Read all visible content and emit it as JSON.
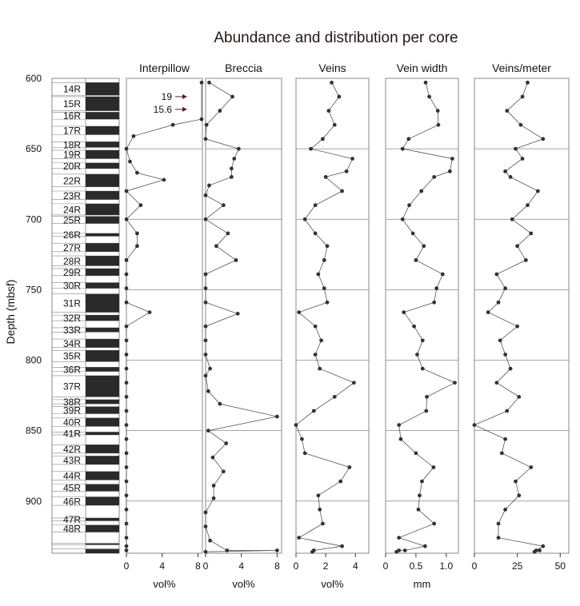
{
  "title": "Abundance and distribution per core",
  "y_axis_label": "Depth (mbsf)",
  "colors": {
    "line": "#555555",
    "point": "#333333",
    "frame": "#888888",
    "core_fill": "#2a2a2a",
    "arrow": "#5a1e1e"
  },
  "cores": [
    {
      "label": "14R",
      "top": 603,
      "bottom": 612
    },
    {
      "label": "15R",
      "top": 613,
      "bottom": 623
    },
    {
      "label": "16R",
      "top": 624,
      "bottom": 629
    },
    {
      "label": "17R",
      "top": 634,
      "bottom": 640
    },
    {
      "label": "18R",
      "top": 645,
      "bottom": 649
    },
    {
      "label": "19R",
      "top": 651,
      "bottom": 657
    },
    {
      "label": "20R",
      "top": 660,
      "bottom": 664
    },
    {
      "label": "22R",
      "top": 668,
      "bottom": 677
    },
    {
      "label": "23R",
      "top": 680,
      "bottom": 686
    },
    {
      "label": "24R",
      "top": 689,
      "bottom": 697
    },
    {
      "label": "25R",
      "top": 698,
      "bottom": 703
    },
    {
      "label": "26R",
      "top": 710,
      "bottom": 712
    },
    {
      "label": "27R",
      "top": 717,
      "bottom": 723
    },
    {
      "label": "28R",
      "top": 726,
      "bottom": 733
    },
    {
      "label": "29R",
      "top": 735,
      "bottom": 740
    },
    {
      "label": "30R",
      "top": 745,
      "bottom": 749
    },
    {
      "label": "31R",
      "top": 753,
      "bottom": 766
    },
    {
      "label": "32R",
      "top": 768,
      "bottom": 772
    },
    {
      "label": "33R",
      "top": 777,
      "bottom": 780
    },
    {
      "label": "34R",
      "top": 785,
      "bottom": 791
    },
    {
      "label": "35R",
      "top": 793,
      "bottom": 801
    },
    {
      "label": "36R",
      "top": 805,
      "bottom": 808
    },
    {
      "label": "37R",
      "top": 811,
      "bottom": 826
    },
    {
      "label": "38R",
      "top": 828,
      "bottom": 831
    },
    {
      "label": "39R",
      "top": 833,
      "bottom": 838
    },
    {
      "label": "40R",
      "top": 841,
      "bottom": 847
    },
    {
      "label": "41R",
      "top": 851,
      "bottom": 853
    },
    {
      "label": "42R",
      "top": 860,
      "bottom": 866
    },
    {
      "label": "43R",
      "top": 868,
      "bottom": 874
    },
    {
      "label": "44R",
      "top": 879,
      "bottom": 885
    },
    {
      "label": "45R",
      "top": 888,
      "bottom": 893
    },
    {
      "label": "46R",
      "top": 897,
      "bottom": 903
    },
    {
      "label": "47R",
      "top": 912,
      "bottom": 914
    },
    {
      "label": "48R",
      "top": 917,
      "bottom": 922
    },
    {
      "label": "",
      "top": 930,
      "bottom": 931
    },
    {
      "label": "",
      "top": 934,
      "bottom": 937
    }
  ],
  "chart_data": {
    "type": "line",
    "y_axis": {
      "label": "Depth (mbsf)",
      "range": [
        600,
        937
      ],
      "reversed": true,
      "ticks": [
        600,
        650,
        700,
        750,
        800,
        850,
        900
      ]
    },
    "depth_gridlines": [
      650,
      700,
      750,
      800,
      850,
      900
    ],
    "panels": [
      {
        "name": "Interpillow",
        "unit": "vol%",
        "xlim": [
          0,
          8.5
        ],
        "ticks": [
          {
            "v": 0,
            "t": "0"
          },
          {
            "v": 4,
            "t": "4"
          },
          {
            "v": 8,
            "t": "8"
          }
        ],
        "annotations": [
          {
            "text": "19",
            "depth": 613
          },
          {
            "text": "15.6",
            "depth": 622
          }
        ],
        "points": [
          [
            8.5,
            603
          ],
          [
            8.5,
            629
          ],
          [
            5.2,
            633
          ],
          [
            0.8,
            641
          ],
          [
            0,
            650
          ],
          [
            0.4,
            659
          ],
          [
            1.2,
            667
          ],
          [
            4.2,
            672
          ],
          [
            0,
            680
          ],
          [
            1.6,
            690
          ],
          [
            0,
            700
          ],
          [
            1.2,
            710
          ],
          [
            1.2,
            719
          ],
          [
            0,
            729
          ],
          [
            0,
            739
          ],
          [
            0,
            749
          ],
          [
            0,
            759
          ],
          [
            2.6,
            766
          ],
          [
            0,
            776
          ],
          [
            0,
            786
          ],
          [
            0,
            796
          ],
          [
            0,
            806
          ],
          [
            0,
            816
          ],
          [
            0,
            826
          ],
          [
            0,
            836
          ],
          [
            0,
            846
          ],
          [
            0,
            856
          ],
          [
            0,
            866
          ],
          [
            0,
            876
          ],
          [
            0,
            886
          ],
          [
            0,
            896
          ],
          [
            0,
            906
          ],
          [
            0,
            916
          ],
          [
            0,
            926
          ],
          [
            0,
            932
          ],
          [
            0,
            935
          ]
        ]
      },
      {
        "name": "Breccia",
        "unit": "vol%",
        "xlim": [
          0,
          8.5
        ],
        "ticks": [
          {
            "v": 0,
            "t": "0"
          },
          {
            "v": 4,
            "t": "4"
          },
          {
            "v": 8,
            "t": "8"
          }
        ],
        "points": [
          [
            0.4,
            603
          ],
          [
            3,
            613
          ],
          [
            1.6,
            623
          ],
          [
            0.1,
            633
          ],
          [
            0,
            643
          ],
          [
            3.7,
            650
          ],
          [
            3.2,
            657
          ],
          [
            2.9,
            664
          ],
          [
            2.9,
            670
          ],
          [
            0.4,
            676
          ],
          [
            0,
            683
          ],
          [
            2,
            690
          ],
          [
            0,
            700
          ],
          [
            2.5,
            710
          ],
          [
            1.2,
            719
          ],
          [
            3.4,
            729
          ],
          [
            0,
            739
          ],
          [
            0,
            749
          ],
          [
            0,
            759
          ],
          [
            3.6,
            767
          ],
          [
            0,
            776
          ],
          [
            0,
            786
          ],
          [
            0,
            796
          ],
          [
            0.5,
            806
          ],
          [
            0,
            811
          ],
          [
            0.3,
            822
          ],
          [
            1.6,
            831
          ],
          [
            8,
            840
          ],
          [
            0.3,
            850
          ],
          [
            2.3,
            859
          ],
          [
            0.8,
            869
          ],
          [
            2,
            879
          ],
          [
            0.9,
            889
          ],
          [
            0.9,
            898
          ],
          [
            0,
            908
          ],
          [
            0,
            918
          ],
          [
            0.5,
            928
          ],
          [
            2.4,
            935
          ],
          [
            8,
            935
          ],
          [
            0,
            936
          ]
        ]
      },
      {
        "name": "Veins",
        "unit": "vol%",
        "xlim": [
          0,
          4.9
        ],
        "ticks": [
          {
            "v": 0,
            "t": "0"
          },
          {
            "v": 2,
            "t": "2"
          },
          {
            "v": 4,
            "t": "4"
          }
        ],
        "points": [
          [
            2.4,
            603
          ],
          [
            2.9,
            613
          ],
          [
            2.2,
            623
          ],
          [
            2.6,
            633
          ],
          [
            1.8,
            643
          ],
          [
            1,
            650
          ],
          [
            3.8,
            657
          ],
          [
            3.4,
            666
          ],
          [
            2,
            670
          ],
          [
            3.1,
            680
          ],
          [
            1.3,
            690
          ],
          [
            0.6,
            700
          ],
          [
            1.3,
            710
          ],
          [
            2.1,
            719
          ],
          [
            1.9,
            729
          ],
          [
            1.5,
            739
          ],
          [
            1.9,
            749
          ],
          [
            2.1,
            759
          ],
          [
            0.2,
            766
          ],
          [
            1.3,
            776
          ],
          [
            1.7,
            786
          ],
          [
            1.3,
            796
          ],
          [
            1.6,
            806
          ],
          [
            3.9,
            816
          ],
          [
            2.6,
            826
          ],
          [
            1.2,
            836
          ],
          [
            0,
            846
          ],
          [
            0.4,
            856
          ],
          [
            0.6,
            866
          ],
          [
            3.6,
            876
          ],
          [
            3,
            886
          ],
          [
            1.5,
            896
          ],
          [
            1.6,
            906
          ],
          [
            1.8,
            916
          ],
          [
            0.2,
            926
          ],
          [
            3.1,
            932
          ],
          [
            1.2,
            935
          ],
          [
            1.1,
            936
          ]
        ]
      },
      {
        "name": "Vein width",
        "unit": "mm",
        "xlim": [
          0,
          1.2
        ],
        "ticks": [
          {
            "v": 0,
            "t": "0"
          },
          {
            "v": 0.5,
            "t": "0.5"
          },
          {
            "v": 1,
            "t": "1.0"
          }
        ],
        "points": [
          [
            0.66,
            603
          ],
          [
            0.72,
            613
          ],
          [
            0.86,
            623
          ],
          [
            0.87,
            633
          ],
          [
            0.38,
            643
          ],
          [
            0.28,
            650
          ],
          [
            1.1,
            657
          ],
          [
            1.06,
            666
          ],
          [
            0.8,
            670
          ],
          [
            0.59,
            680
          ],
          [
            0.39,
            690
          ],
          [
            0.28,
            700
          ],
          [
            0.45,
            710
          ],
          [
            0.63,
            719
          ],
          [
            0.5,
            729
          ],
          [
            0.94,
            739
          ],
          [
            0.84,
            749
          ],
          [
            0.8,
            759
          ],
          [
            0.3,
            766
          ],
          [
            0.47,
            776
          ],
          [
            0.61,
            786
          ],
          [
            0.52,
            796
          ],
          [
            0.61,
            806
          ],
          [
            1.14,
            816
          ],
          [
            0.68,
            826
          ],
          [
            0.67,
            836
          ],
          [
            0.22,
            846
          ],
          [
            0.25,
            856
          ],
          [
            0.5,
            866
          ],
          [
            0.79,
            876
          ],
          [
            0.6,
            886
          ],
          [
            0.56,
            896
          ],
          [
            0.54,
            906
          ],
          [
            0.8,
            916
          ],
          [
            0.22,
            926
          ],
          [
            0.65,
            932
          ],
          [
            0.32,
            935
          ],
          [
            0.22,
            935
          ],
          [
            0.18,
            936
          ]
        ]
      },
      {
        "name": "Veins/meter",
        "unit": "",
        "xlim": [
          0,
          55
        ],
        "ticks": [
          {
            "v": 0,
            "t": "0"
          },
          {
            "v": 25,
            "t": "25"
          },
          {
            "v": 50,
            "t": "50"
          }
        ],
        "points": [
          [
            31,
            603
          ],
          [
            28,
            613
          ],
          [
            19,
            623
          ],
          [
            27,
            633
          ],
          [
            40,
            643
          ],
          [
            24,
            650
          ],
          [
            28,
            657
          ],
          [
            18,
            666
          ],
          [
            21,
            670
          ],
          [
            37,
            680
          ],
          [
            31,
            690
          ],
          [
            22,
            700
          ],
          [
            33,
            710
          ],
          [
            25,
            719
          ],
          [
            30,
            729
          ],
          [
            13,
            739
          ],
          [
            18,
            749
          ],
          [
            14,
            759
          ],
          [
            8,
            766
          ],
          [
            25,
            776
          ],
          [
            15,
            786
          ],
          [
            18,
            796
          ],
          [
            21,
            806
          ],
          [
            13,
            816
          ],
          [
            26,
            826
          ],
          [
            19,
            836
          ],
          [
            0,
            846
          ],
          [
            18,
            856
          ],
          [
            16,
            866
          ],
          [
            33,
            876
          ],
          [
            24,
            886
          ],
          [
            26,
            896
          ],
          [
            18,
            906
          ],
          [
            14,
            916
          ],
          [
            14,
            926
          ],
          [
            40,
            932
          ],
          [
            36,
            935
          ],
          [
            38,
            935
          ],
          [
            35,
            936
          ]
        ]
      }
    ]
  }
}
